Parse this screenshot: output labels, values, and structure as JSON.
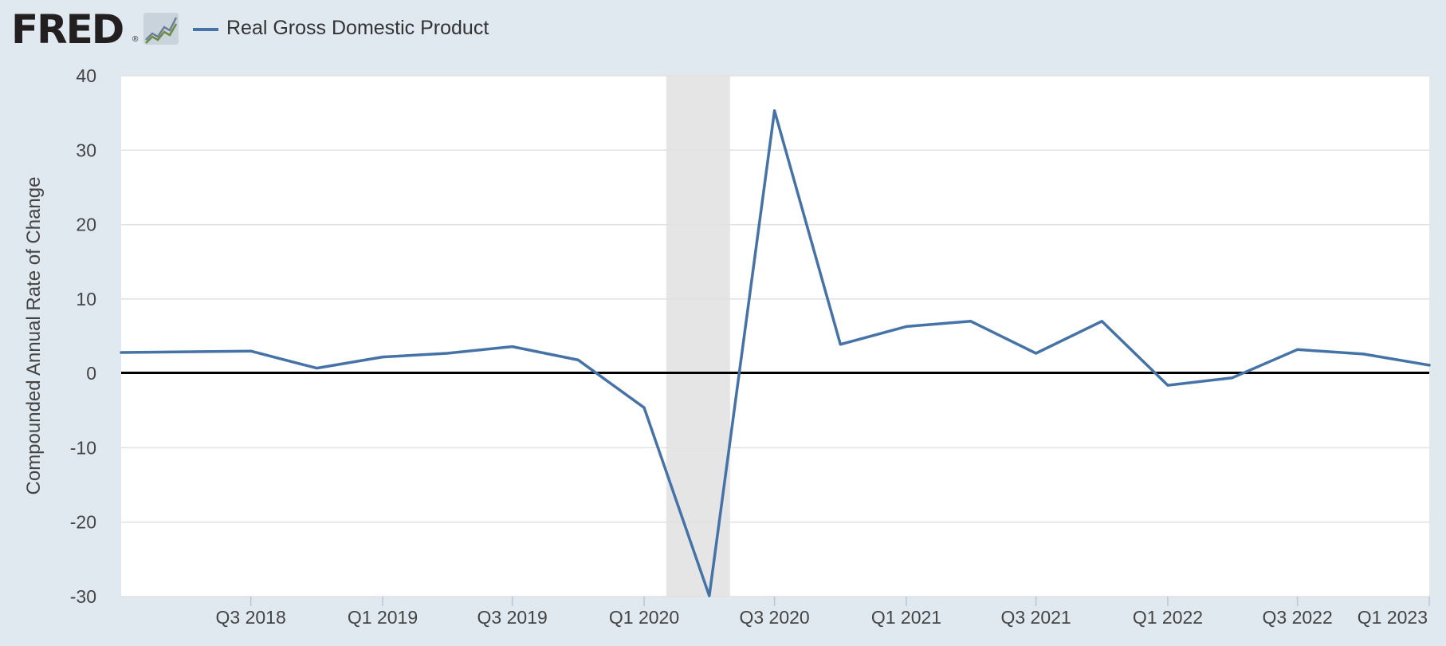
{
  "header": {
    "logo_text": "FRED",
    "logo_mark": "®",
    "logo_icon": "fred-line-graph-icon",
    "legend_label": "Real Gross Domestic Product"
  },
  "colors": {
    "series": "#4572a7",
    "recession": "#e5e5e5",
    "background": "#e1e9f0",
    "plot": "#ffffff",
    "zero_line": "#000000"
  },
  "chart_data": {
    "type": "line",
    "title": "",
    "xlabel": "",
    "ylabel": "Compounded Annual Rate of Change",
    "ylim": [
      -30,
      40
    ],
    "yticks": [
      40,
      30,
      20,
      10,
      0,
      -10,
      -20,
      -30
    ],
    "xticks": [
      "Q3 2018",
      "Q1 2019",
      "Q3 2019",
      "Q1 2020",
      "Q3 2020",
      "Q1 2021",
      "Q3 2021",
      "Q1 2022",
      "Q3 2022",
      "Q1 2023"
    ],
    "grid": "horizontal",
    "recession_shading": {
      "from": "2020-02-01",
      "to": "2020-04-30"
    },
    "series": [
      {
        "name": "Real Gross Domestic Product",
        "x": [
          "2018-01-01",
          "2018-04-01",
          "2018-07-01",
          "2018-10-01",
          "2019-01-01",
          "2019-04-01",
          "2019-07-01",
          "2019-10-01",
          "2020-01-01",
          "2020-04-01",
          "2020-07-01",
          "2020-10-01",
          "2021-01-01",
          "2021-04-01",
          "2021-07-01",
          "2021-10-01",
          "2022-01-01",
          "2022-04-01",
          "2022-07-01",
          "2022-10-01",
          "2023-01-01"
        ],
        "values": [
          2.8,
          2.9,
          3.0,
          0.7,
          2.2,
          2.7,
          3.6,
          1.8,
          -4.6,
          -29.9,
          35.3,
          3.9,
          6.3,
          7.0,
          2.7,
          7.0,
          -1.6,
          -0.6,
          3.2,
          2.6,
          1.1
        ]
      }
    ]
  }
}
